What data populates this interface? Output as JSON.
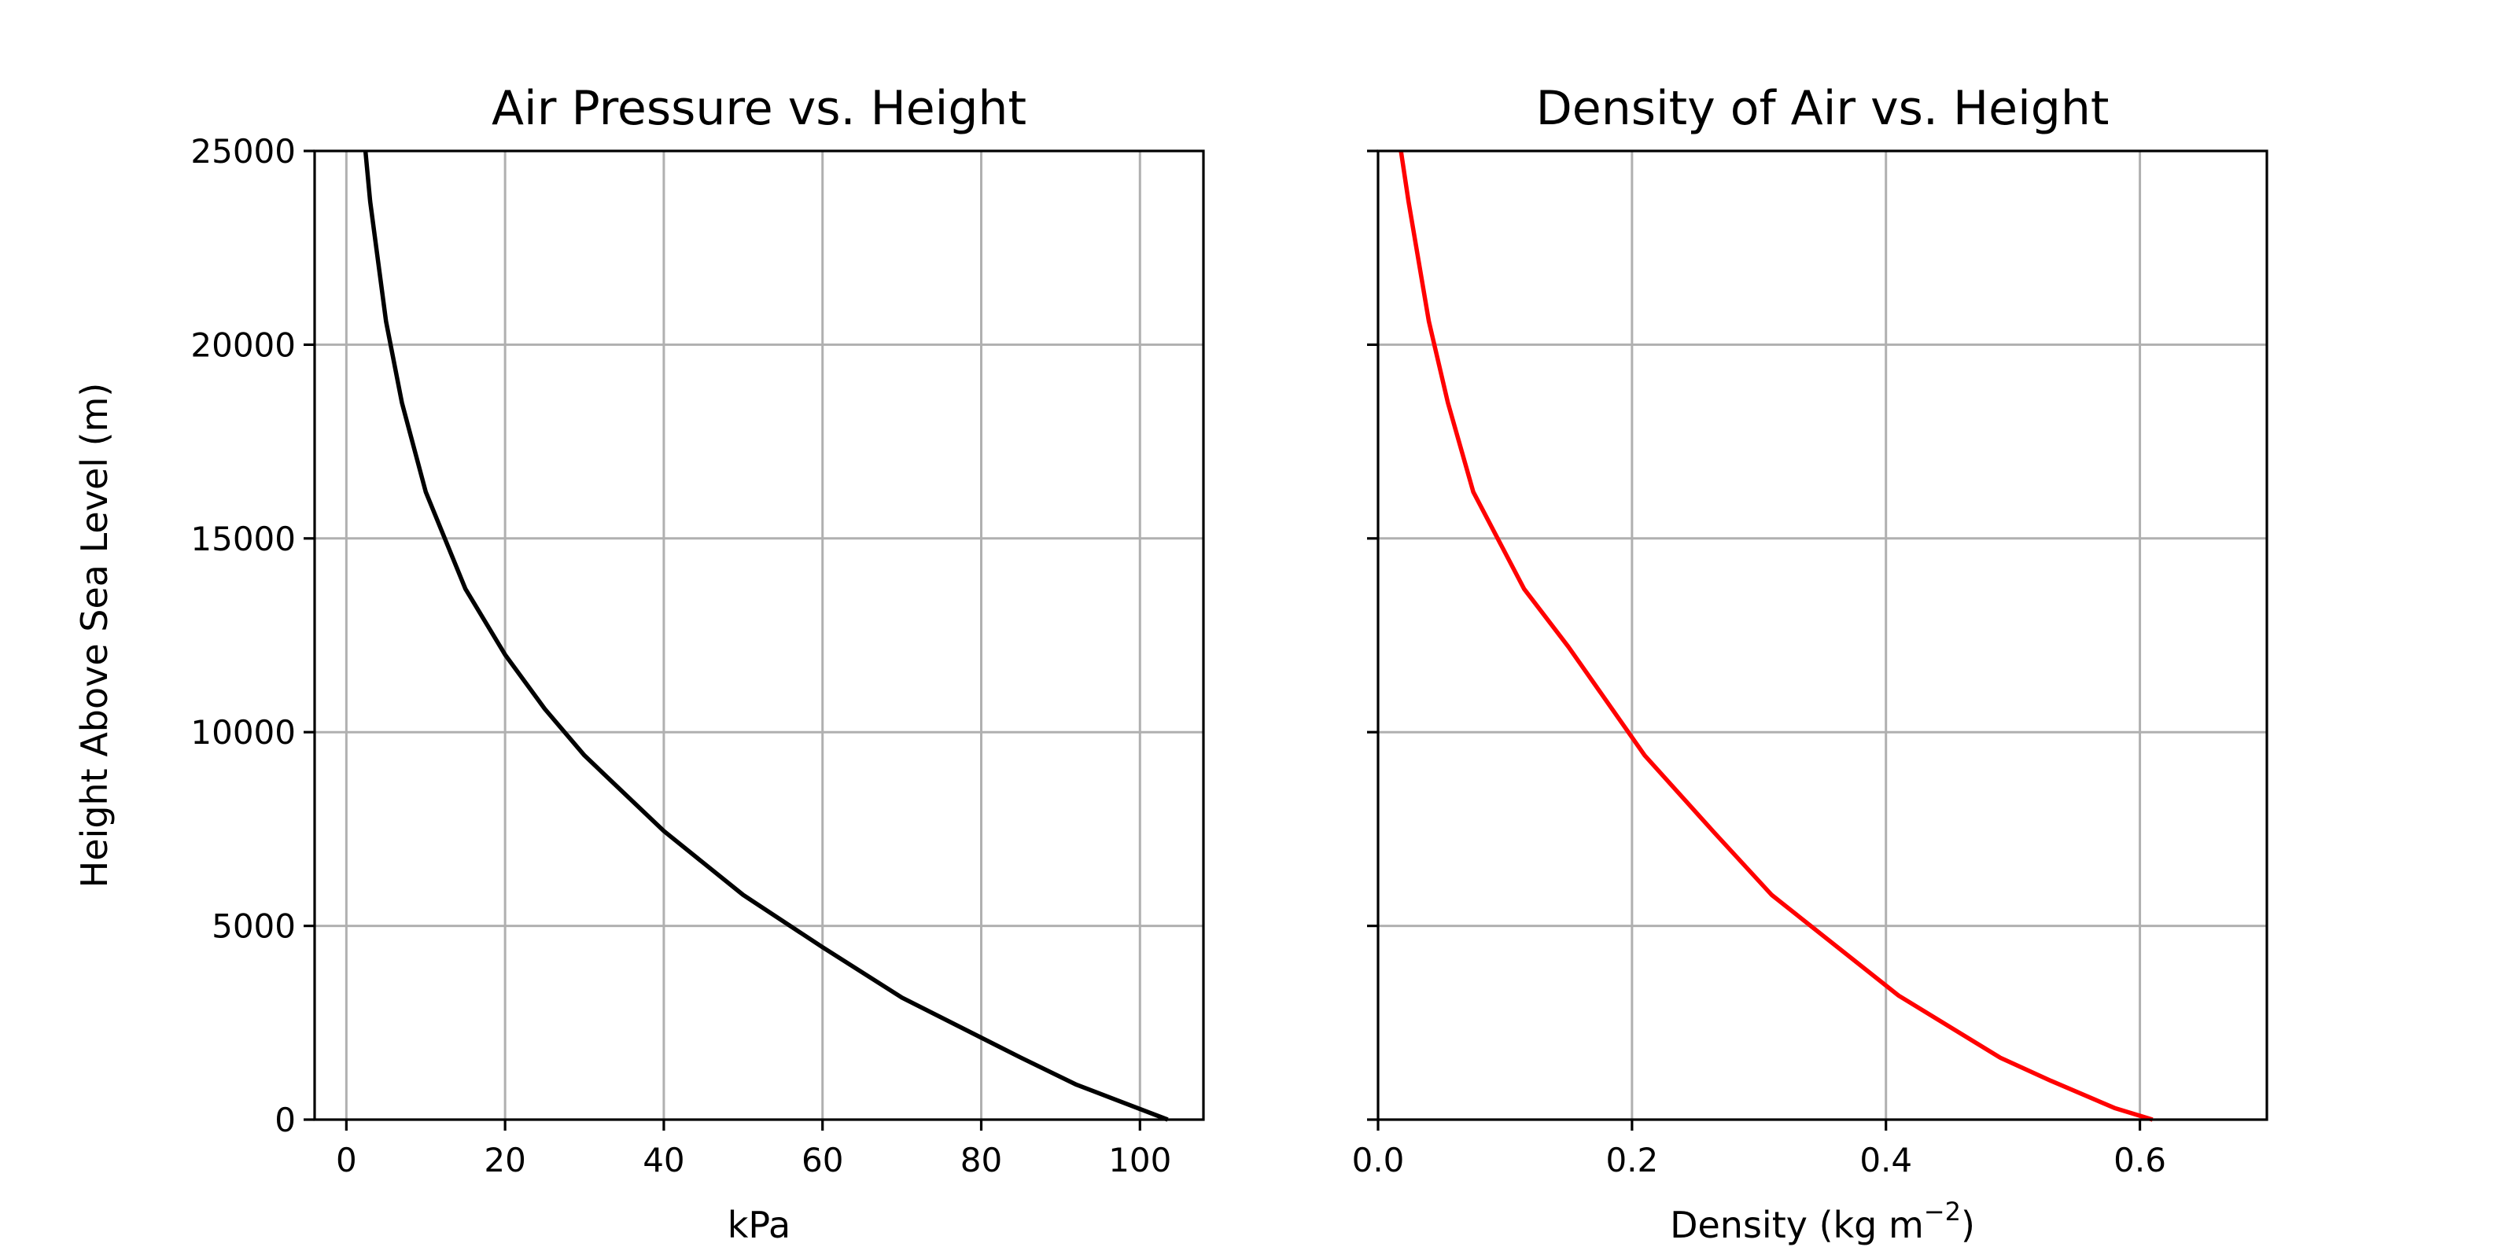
{
  "chart_data": [
    {
      "type": "line",
      "title": "Air Pressure vs. Height",
      "xlabel": "kPa",
      "ylabel": "Height Above Sea Level (m)",
      "xlim": [
        -4,
        108
      ],
      "ylim": [
        0,
        25000
      ],
      "xticks": [
        0,
        20,
        40,
        60,
        80,
        100
      ],
      "yticks": [
        0,
        5000,
        10000,
        15000,
        20000,
        25000
      ],
      "grid": true,
      "series": [
        {
          "color": "#000000",
          "points": [
            {
              "x": 103.5,
              "y": 0
            },
            {
              "x": 92,
              "y": 900
            },
            {
              "x": 85,
              "y": 1600
            },
            {
              "x": 70,
              "y": 3150
            },
            {
              "x": 60,
              "y": 4450
            },
            {
              "x": 50,
              "y": 5800
            },
            {
              "x": 40,
              "y": 7450
            },
            {
              "x": 30,
              "y": 9400
            },
            {
              "x": 25,
              "y": 10600
            },
            {
              "x": 20,
              "y": 12000
            },
            {
              "x": 15,
              "y": 13700
            },
            {
              "x": 10,
              "y": 16200
            },
            {
              "x": 7,
              "y": 18500
            },
            {
              "x": 5,
              "y": 20600
            },
            {
              "x": 3,
              "y": 23700
            },
            {
              "x": 2.4,
              "y": 25000
            }
          ]
        }
      ]
    },
    {
      "type": "line",
      "title": "Density of Air vs. Height",
      "xlabel": "Density (kg m",
      "xlabel_sup": "−2",
      "xlabel_suffix": ")",
      "xlim": [
        0,
        0.7
      ],
      "ylim": [
        0,
        25000
      ],
      "xticks": [
        0.0,
        0.2,
        0.4,
        0.6
      ],
      "xtick_labels": [
        "0.0",
        "0.2",
        "0.4",
        "0.6"
      ],
      "yticks": [
        0,
        5000,
        10000,
        15000,
        20000,
        25000
      ],
      "grid": true,
      "series": [
        {
          "color": "#ff0000",
          "points": [
            {
              "x": 0.61,
              "y": 0
            },
            {
              "x": 0.58,
              "y": 300
            },
            {
              "x": 0.53,
              "y": 1000
            },
            {
              "x": 0.49,
              "y": 1600
            },
            {
              "x": 0.41,
              "y": 3200
            },
            {
              "x": 0.31,
              "y": 5800
            },
            {
              "x": 0.265,
              "y": 7400
            },
            {
              "x": 0.21,
              "y": 9400
            },
            {
              "x": 0.15,
              "y": 12200
            },
            {
              "x": 0.115,
              "y": 13700
            },
            {
              "x": 0.075,
              "y": 16200
            },
            {
              "x": 0.055,
              "y": 18500
            },
            {
              "x": 0.04,
              "y": 20600
            },
            {
              "x": 0.024,
              "y": 23700
            },
            {
              "x": 0.018,
              "y": 25000
            }
          ]
        }
      ]
    }
  ]
}
